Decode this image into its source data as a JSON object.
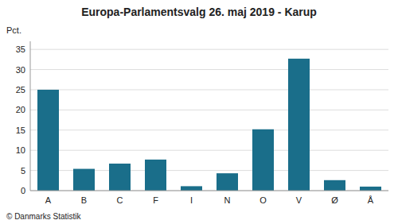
{
  "chart_data": {
    "type": "bar",
    "title": "Europa-Parlamentsvalg 26. maj 2019 - Karup",
    "categories": [
      "A",
      "B",
      "C",
      "F",
      "I",
      "N",
      "O",
      "V",
      "Ø",
      "Å"
    ],
    "values": [
      25.0,
      5.4,
      6.7,
      7.7,
      1.1,
      4.3,
      15.2,
      32.7,
      2.6,
      1.0
    ],
    "color": "#1a6e8a",
    "ylabel": "Pct.",
    "ylim": [
      0,
      37
    ],
    "yticks": [
      0,
      5,
      10,
      15,
      20,
      25,
      30,
      35
    ],
    "grid": true,
    "footer": "© Danmarks Statistik"
  }
}
